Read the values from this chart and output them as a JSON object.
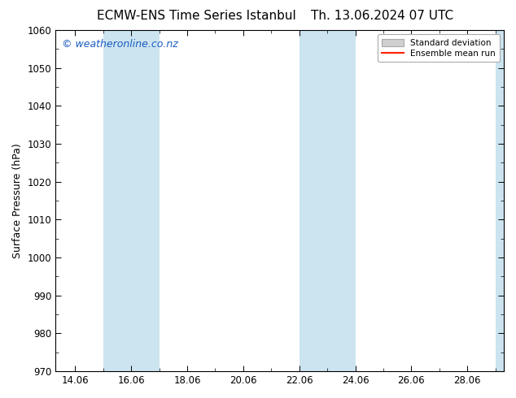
{
  "title_left": "ECMW-ENS Time Series Istanbul",
  "title_right": "Th. 13.06.2024 07 UTC",
  "ylabel": "Surface Pressure (hPa)",
  "xlabel": "",
  "ylim": [
    970,
    1060
  ],
  "yticks": [
    970,
    980,
    990,
    1000,
    1010,
    1020,
    1030,
    1040,
    1050,
    1060
  ],
  "xtick_labels": [
    "14.06",
    "16.06",
    "18.06",
    "20.06",
    "22.06",
    "24.06",
    "26.06",
    "28.06"
  ],
  "xtick_positions": [
    14,
    16,
    18,
    20,
    22,
    24,
    26,
    28
  ],
  "xmin": 13.3,
  "xmax": 29.3,
  "shaded_bands": [
    {
      "x_start": 15.0,
      "x_end": 17.0
    },
    {
      "x_start": 22.0,
      "x_end": 24.0
    },
    {
      "x_start": 29.0,
      "x_end": 29.3
    }
  ],
  "shaded_color": "#cce4f0",
  "shaded_alpha": 1.0,
  "background_color": "#ffffff",
  "plot_bg_color": "#ffffff",
  "watermark_text": "© weatheronline.co.nz",
  "watermark_color": "#1a5bbf",
  "watermark_fontsize": 9,
  "legend_std_label": "Standard deviation",
  "legend_mean_label": "Ensemble mean run",
  "legend_std_color": "#d0d0d0",
  "legend_std_edge": "#aaaaaa",
  "legend_mean_color": "#ff2200",
  "title_fontsize": 11,
  "ylabel_fontsize": 9,
  "tick_fontsize": 8.5
}
